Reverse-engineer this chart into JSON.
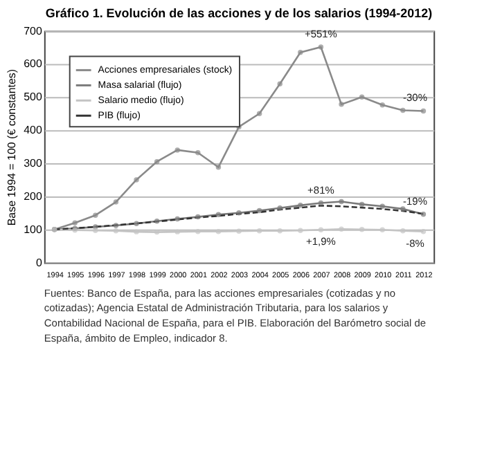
{
  "chart_data": {
    "type": "line",
    "title": "Gráfico 1. Evolución de las acciones y de los salarios (1994-2012)",
    "ylabel": "Base 1994 = 100 (€ constantes)",
    "categories": [
      "1994",
      "1995",
      "1996",
      "1997",
      "1998",
      "1999",
      "2000",
      "2001",
      "2002",
      "2003",
      "2004",
      "2005",
      "2006",
      "2007",
      "2008",
      "2009",
      "2010",
      "2011",
      "2012"
    ],
    "series": [
      {
        "name": "Acciones empresariales (stock)",
        "color": "#8a8a8a",
        "marker": "circle",
        "line_style": "solid",
        "values": [
          100,
          120,
          143,
          183,
          250,
          305,
          340,
          332,
          288,
          410,
          450,
          540,
          635,
          651,
          478,
          500,
          476,
          460,
          458
        ]
      },
      {
        "name": "Masa salarial (flujo)",
        "color": "#7a7a7a",
        "marker": "circle",
        "line_style": "solid",
        "values": [
          100,
          103,
          108,
          112,
          118,
          125,
          132,
          138,
          145,
          150,
          157,
          165,
          173,
          180,
          184,
          176,
          170,
          162,
          146
        ]
      },
      {
        "name": "Salario medio (flujo)",
        "color": "#c4c4c4",
        "marker": "circle",
        "line_style": "solid",
        "values": [
          100,
          98,
          97,
          96,
          93,
          92,
          93,
          94,
          94,
          95,
          96,
          96,
          97,
          99,
          101,
          100,
          99,
          96,
          94
        ]
      },
      {
        "name": "PIB (flujo)",
        "color": "#333333",
        "marker": "none",
        "line_style": "dashed",
        "values": [
          100,
          104,
          108,
          113,
          118,
          124,
          130,
          136,
          141,
          147,
          152,
          160,
          166,
          172,
          170,
          166,
          162,
          156,
          147
        ]
      }
    ],
    "ylim": [
      0,
      700
    ],
    "yticks": [
      0,
      100,
      200,
      300,
      400,
      500,
      600,
      700
    ],
    "grid": "y",
    "legend": "top left",
    "annotations": [
      {
        "text": "+551%",
        "x": "2007",
        "y": 651
      },
      {
        "text": "-30%",
        "x": "2012",
        "y": 458
      },
      {
        "text": "+81%",
        "x": "2007",
        "y": 180
      },
      {
        "text": "-19%",
        "x": "2012",
        "y": 146
      },
      {
        "text": "+1,9%",
        "x": "2007",
        "y": 99
      },
      {
        "text": "-8%",
        "x": "2012",
        "y": 94
      },
      "Fuentes: Banco de España, para las acciones empresariales (cotizadas y no cotizadas); Agencia Estatal de Administración Tributaria, para los salarios y Contabilidad Nacional de España, para el PIB. Elaboración del Barómetro social de España, ámbito de Empleo, indicador 8."
    ]
  }
}
